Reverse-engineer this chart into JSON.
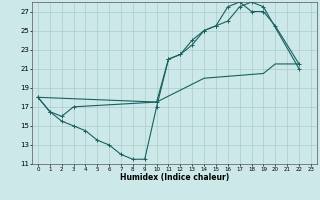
{
  "xlabel": "Humidex (Indice chaleur)",
  "background_color": "#cce8e8",
  "grid_color": "#aacaca",
  "line_color": "#1a6060",
  "xlim": [
    -0.5,
    23.5
  ],
  "ylim": [
    11,
    28
  ],
  "xticks": [
    0,
    1,
    2,
    3,
    4,
    5,
    6,
    7,
    8,
    9,
    10,
    11,
    12,
    13,
    14,
    15,
    16,
    17,
    18,
    19,
    20,
    21,
    22,
    23
  ],
  "yticks": [
    11,
    13,
    15,
    17,
    19,
    21,
    23,
    25,
    27
  ],
  "curve1_x": [
    0,
    1,
    2,
    3,
    4,
    5,
    6,
    7,
    8,
    9,
    10,
    11,
    12,
    13,
    14,
    15,
    16,
    17,
    18,
    19,
    22
  ],
  "curve1_y": [
    18,
    16.5,
    15.5,
    15,
    14.5,
    13.5,
    13,
    12,
    11.5,
    11.5,
    17,
    22,
    22.5,
    23.5,
    25,
    25.5,
    26,
    27.5,
    28,
    27.5,
    21
  ],
  "curve2_x": [
    0,
    1,
    2,
    3,
    10,
    11,
    12,
    13,
    14,
    15,
    16,
    17,
    18,
    19,
    20,
    22
  ],
  "curve2_y": [
    18,
    16.5,
    16,
    17,
    17.5,
    22,
    22.5,
    24,
    25,
    25.5,
    27.5,
    28,
    27,
    27,
    25.5,
    21.5
  ],
  "curve3_x": [
    0,
    10,
    14,
    19,
    20,
    22
  ],
  "curve3_y": [
    18,
    17.5,
    20,
    20.5,
    21.5,
    21.5
  ]
}
